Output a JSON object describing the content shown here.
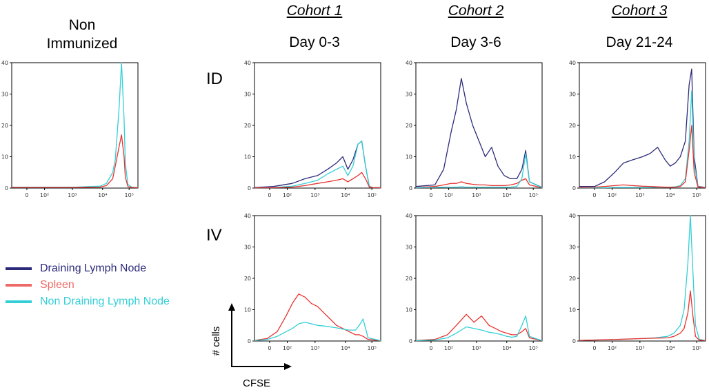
{
  "colors": {
    "draining": "#2b2a7a",
    "spleen": "#e8322e",
    "nondraining": "#33cfd6",
    "legend_draining": "#2b2a7a",
    "legend_spleen": "#ee6a66",
    "legend_nondraining": "#33cfd6"
  },
  "header": {
    "non_immunized_line1": "Non",
    "non_immunized_line2": "Immunized",
    "cohorts": [
      {
        "label": "Cohort 1",
        "day": "Day 0-3"
      },
      {
        "label": "Cohort 2",
        "day": "Day 3-6"
      },
      {
        "label": "Cohort 3",
        "day": "Day 21-24"
      }
    ],
    "rows": [
      "ID",
      "IV"
    ]
  },
  "legend": {
    "items": [
      "Draining Lymph Node",
      "Spleen",
      "Non Draining Lymph Node"
    ]
  },
  "axis_labels": {
    "y": "# cells",
    "x": "CFSE"
  },
  "chart_data": [
    {
      "type": "line",
      "panel": "non-immunized",
      "ylim": [
        0,
        40
      ],
      "yticks": [
        "0",
        "10",
        "20",
        "30",
        "40"
      ],
      "xlim": [
        0,
        1
      ],
      "xticks": [
        "0",
        "10²",
        "10³",
        "10⁴",
        "10⁵"
      ],
      "x": [
        0.0,
        0.5,
        0.7,
        0.75,
        0.8,
        0.82,
        0.85,
        0.87,
        0.89,
        0.9,
        0.92,
        0.95,
        1.0
      ],
      "series": [
        {
          "name": "Non Draining Lymph Node",
          "values": [
            0.3,
            0.3,
            0.6,
            1.5,
            5,
            9,
            25,
            40,
            22,
            8,
            1.2,
            0.3,
            0.2
          ]
        },
        {
          "name": "Spleen",
          "values": [
            0.2,
            0.2,
            0.3,
            0.8,
            3,
            7,
            13,
            17,
            10,
            3.5,
            0.5,
            0.2,
            0.1
          ]
        }
      ]
    },
    {
      "type": "line",
      "panel": "ID Cohort 1 Day 0-3",
      "ylim": [
        0,
        40
      ],
      "yticks": [
        "0",
        "10",
        "20",
        "30",
        "40"
      ],
      "xlim": [
        0,
        1
      ],
      "xticks": [
        "0",
        "10²",
        "10³",
        "10⁴",
        "10⁵"
      ],
      "x": [
        0.0,
        0.15,
        0.3,
        0.4,
        0.5,
        0.58,
        0.65,
        0.7,
        0.74,
        0.78,
        0.82,
        0.85,
        0.88,
        0.91,
        0.94,
        1.0
      ],
      "series": [
        {
          "name": "Draining Lymph Node",
          "values": [
            0.2,
            0.5,
            1.5,
            3,
            4,
            6,
            8,
            10,
            6,
            9,
            14,
            15,
            7,
            0.5,
            0.2,
            0.1
          ]
        },
        {
          "name": "Non Draining Lymph Node",
          "values": [
            0.1,
            0.2,
            0.6,
            1.5,
            2.5,
            4.5,
            6,
            7,
            4,
            7,
            14,
            15,
            7,
            0.5,
            0.2,
            0.1
          ]
        },
        {
          "name": "Spleen",
          "values": [
            0.1,
            0.1,
            0.3,
            0.8,
            1.5,
            2,
            2.5,
            3,
            2,
            3,
            4,
            5,
            3,
            0.3,
            0.1,
            0.1
          ]
        }
      ]
    },
    {
      "type": "line",
      "panel": "ID Cohort 2 Day 3-6",
      "ylim": [
        0,
        40
      ],
      "yticks": [
        "0",
        "10",
        "20",
        "30",
        "40"
      ],
      "xlim": [
        0,
        1
      ],
      "xticks": [
        "0",
        "10²",
        "10³",
        "10⁴",
        "10⁵"
      ],
      "x": [
        0.0,
        0.15,
        0.22,
        0.28,
        0.32,
        0.36,
        0.4,
        0.45,
        0.5,
        0.55,
        0.6,
        0.65,
        0.7,
        0.75,
        0.8,
        0.84,
        0.87,
        0.9,
        1.0
      ],
      "series": [
        {
          "name": "Draining Lymph Node",
          "values": [
            0.5,
            1,
            6,
            18,
            25,
            35,
            27,
            20,
            15,
            10,
            13,
            7,
            4,
            3,
            3,
            6,
            12,
            2,
            0.2
          ]
        },
        {
          "name": "Spleen",
          "values": [
            0.2,
            0.5,
            1,
            1.5,
            1.5,
            2,
            1.5,
            1.2,
            1,
            1,
            0.8,
            0.8,
            0.8,
            1,
            1.5,
            2.5,
            3,
            1,
            0.1
          ]
        },
        {
          "name": "Non Draining Lymph Node",
          "values": [
            0.1,
            0.2,
            0.3,
            0.3,
            0.3,
            0.4,
            0.3,
            0.3,
            0.3,
            0.3,
            0.3,
            0.3,
            0.3,
            0.3,
            0.5,
            3,
            11,
            2,
            0.1
          ]
        }
      ]
    },
    {
      "type": "line",
      "panel": "ID Cohort 3 Day 21-24",
      "ylim": [
        0,
        40
      ],
      "yticks": [
        "0",
        "10",
        "20",
        "30",
        "40"
      ],
      "xlim": [
        0,
        1
      ],
      "xticks": [
        "0",
        "10²",
        "10³",
        "10⁴",
        "10⁵"
      ],
      "x": [
        0.0,
        0.12,
        0.2,
        0.28,
        0.35,
        0.42,
        0.5,
        0.56,
        0.62,
        0.68,
        0.72,
        0.76,
        0.8,
        0.84,
        0.87,
        0.89,
        0.91,
        0.94,
        1.0
      ],
      "series": [
        {
          "name": "Draining Lymph Node",
          "values": [
            0.5,
            0.5,
            2,
            5,
            8,
            9,
            10,
            11,
            13,
            9,
            7,
            8,
            10,
            15,
            33,
            38,
            10,
            0.5,
            0.2
          ]
        },
        {
          "name": "Non Draining Lymph Node",
          "values": [
            0.1,
            0.1,
            0.1,
            0.2,
            0.2,
            0.2,
            0.2,
            0.2,
            0.3,
            0.3,
            0.3,
            0.4,
            0.8,
            3,
            15,
            31,
            8,
            0.4,
            0.1
          ]
        },
        {
          "name": "Spleen",
          "values": [
            0.2,
            0.3,
            0.5,
            0.8,
            1,
            0.8,
            0.6,
            0.5,
            0.4,
            0.3,
            0.3,
            0.3,
            0.5,
            2,
            12,
            20,
            5,
            0.3,
            0.1
          ]
        }
      ]
    },
    {
      "type": "line",
      "panel": "IV Cohort 1 Day 0-3",
      "ylim": [
        0,
        40
      ],
      "yticks": [
        "0",
        "10",
        "20",
        "30",
        "40"
      ],
      "xlim": [
        0,
        1
      ],
      "xticks": [
        "0",
        "10²",
        "10³",
        "10⁴",
        "10⁵"
      ],
      "x": [
        0.0,
        0.1,
        0.18,
        0.25,
        0.3,
        0.35,
        0.4,
        0.45,
        0.5,
        0.55,
        0.6,
        0.65,
        0.7,
        0.75,
        0.8,
        0.83,
        0.86,
        0.9,
        1.0
      ],
      "series": [
        {
          "name": "Spleen",
          "values": [
            0.2,
            0.8,
            3,
            8,
            12,
            15,
            14,
            12,
            11,
            9,
            7,
            5,
            4,
            3,
            2,
            2,
            1.5,
            0.5,
            0.1
          ]
        },
        {
          "name": "Non Draining Lymph Node",
          "values": [
            0.1,
            0.5,
            1.5,
            3,
            4,
            5.5,
            6,
            5.5,
            5,
            4.8,
            4.5,
            4.2,
            3.8,
            3.5,
            3.5,
            5,
            7,
            1,
            0.1
          ]
        }
      ]
    },
    {
      "type": "line",
      "panel": "IV Cohort 2 Day 3-6",
      "ylim": [
        0,
        40
      ],
      "yticks": [
        "0",
        "10",
        "20",
        "30",
        "40"
      ],
      "xlim": [
        0,
        1
      ],
      "xticks": [
        "0",
        "10²",
        "10³",
        "10⁴",
        "10⁵"
      ],
      "x": [
        0.0,
        0.15,
        0.25,
        0.32,
        0.4,
        0.46,
        0.52,
        0.58,
        0.63,
        0.68,
        0.72,
        0.76,
        0.8,
        0.84,
        0.87,
        0.9,
        1.0
      ],
      "series": [
        {
          "name": "Spleen",
          "values": [
            0.2,
            0.5,
            2,
            5,
            8.5,
            6,
            8,
            5,
            4,
            3,
            2.5,
            2,
            2,
            3,
            4,
            1,
            0.1
          ]
        },
        {
          "name": "Non Draining Lymph Node",
          "values": [
            0.1,
            0.3,
            1,
            2.5,
            4.5,
            4,
            3.5,
            2.8,
            2.5,
            2,
            1.5,
            1.2,
            1.5,
            5,
            8,
            1.5,
            0.1
          ]
        }
      ]
    },
    {
      "type": "line",
      "panel": "IV Cohort 3 Day 21-24",
      "ylim": [
        0,
        40
      ],
      "yticks": [
        "0",
        "10",
        "20",
        "30",
        "40"
      ],
      "xlim": [
        0,
        1
      ],
      "xticks": [
        "0",
        "10²",
        "10³",
        "10⁴",
        "10⁵"
      ],
      "x": [
        0.0,
        0.3,
        0.5,
        0.6,
        0.7,
        0.75,
        0.8,
        0.83,
        0.86,
        0.88,
        0.9,
        0.92,
        0.95,
        1.0
      ],
      "series": [
        {
          "name": "Non Draining Lymph Node",
          "values": [
            0.2,
            0.5,
            0.8,
            1,
            1.5,
            2.5,
            5,
            10,
            25,
            40,
            22,
            5,
            0.5,
            0.2
          ]
        },
        {
          "name": "Spleen",
          "values": [
            0.2,
            0.5,
            0.8,
            0.9,
            1,
            1.5,
            2.5,
            4,
            9,
            16,
            8,
            1.5,
            0.3,
            0.1
          ]
        }
      ]
    }
  ]
}
